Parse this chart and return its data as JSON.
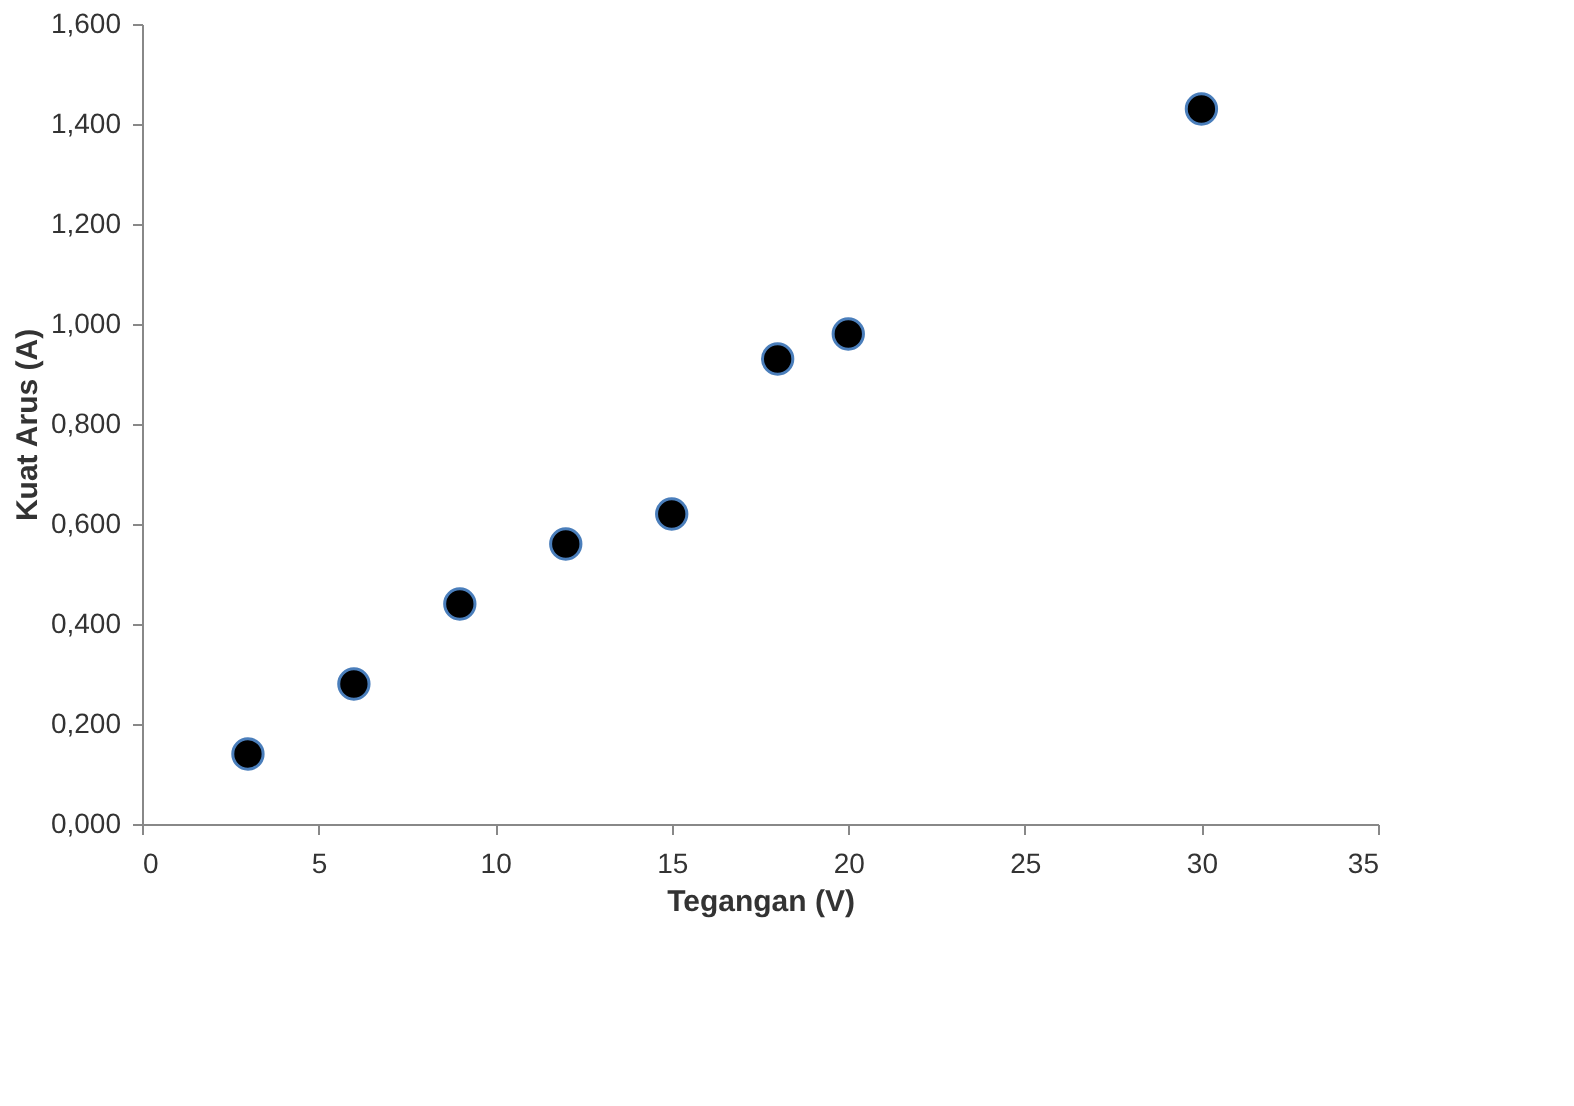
{
  "chart_data": {
    "type": "scatter",
    "xlabel": "Tegangan (V)",
    "ylabel": "Kuat Arus (A)",
    "x": [
      3,
      6,
      9,
      12,
      15,
      18,
      20,
      30
    ],
    "values": [
      0.14,
      0.28,
      0.44,
      0.56,
      0.62,
      0.93,
      0.98,
      1.43
    ],
    "color": "#000000",
    "marker": "circle",
    "xlim": [
      0,
      35
    ],
    "xticks": [
      0,
      5,
      10,
      15,
      20,
      25,
      30,
      35
    ],
    "ylim": [
      0,
      1.6
    ],
    "yticks": [
      {
        "value": 0,
        "label": "0,000"
      },
      {
        "value": 0.2,
        "label": "0,200"
      },
      {
        "value": 0.4,
        "label": "0,400"
      },
      {
        "value": 0.6,
        "label": "0,600"
      },
      {
        "value": 0.8,
        "label": "0,800"
      },
      {
        "value": 1.0,
        "label": "1,000"
      },
      {
        "value": 1.2,
        "label": "1,200"
      },
      {
        "value": 1.4,
        "label": "1,400"
      },
      {
        "value": 1.6,
        "label": "1,600"
      }
    ],
    "grid": false
  }
}
